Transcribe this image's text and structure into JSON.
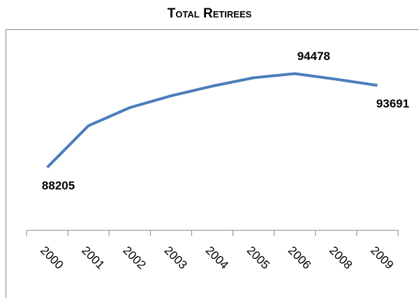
{
  "chart_data": {
    "type": "line",
    "title": "Total Retirees",
    "categories": [
      "2000",
      "2001",
      "2002",
      "2003",
      "2004",
      "2005",
      "2006",
      "2008",
      "2009"
    ],
    "values": [
      88205,
      90993,
      92201,
      92991,
      93642,
      94200,
      94478,
      94100,
      93691
    ],
    "color": "#4a7ebb",
    "ylim": [
      84000,
      97300
    ]
  }
}
